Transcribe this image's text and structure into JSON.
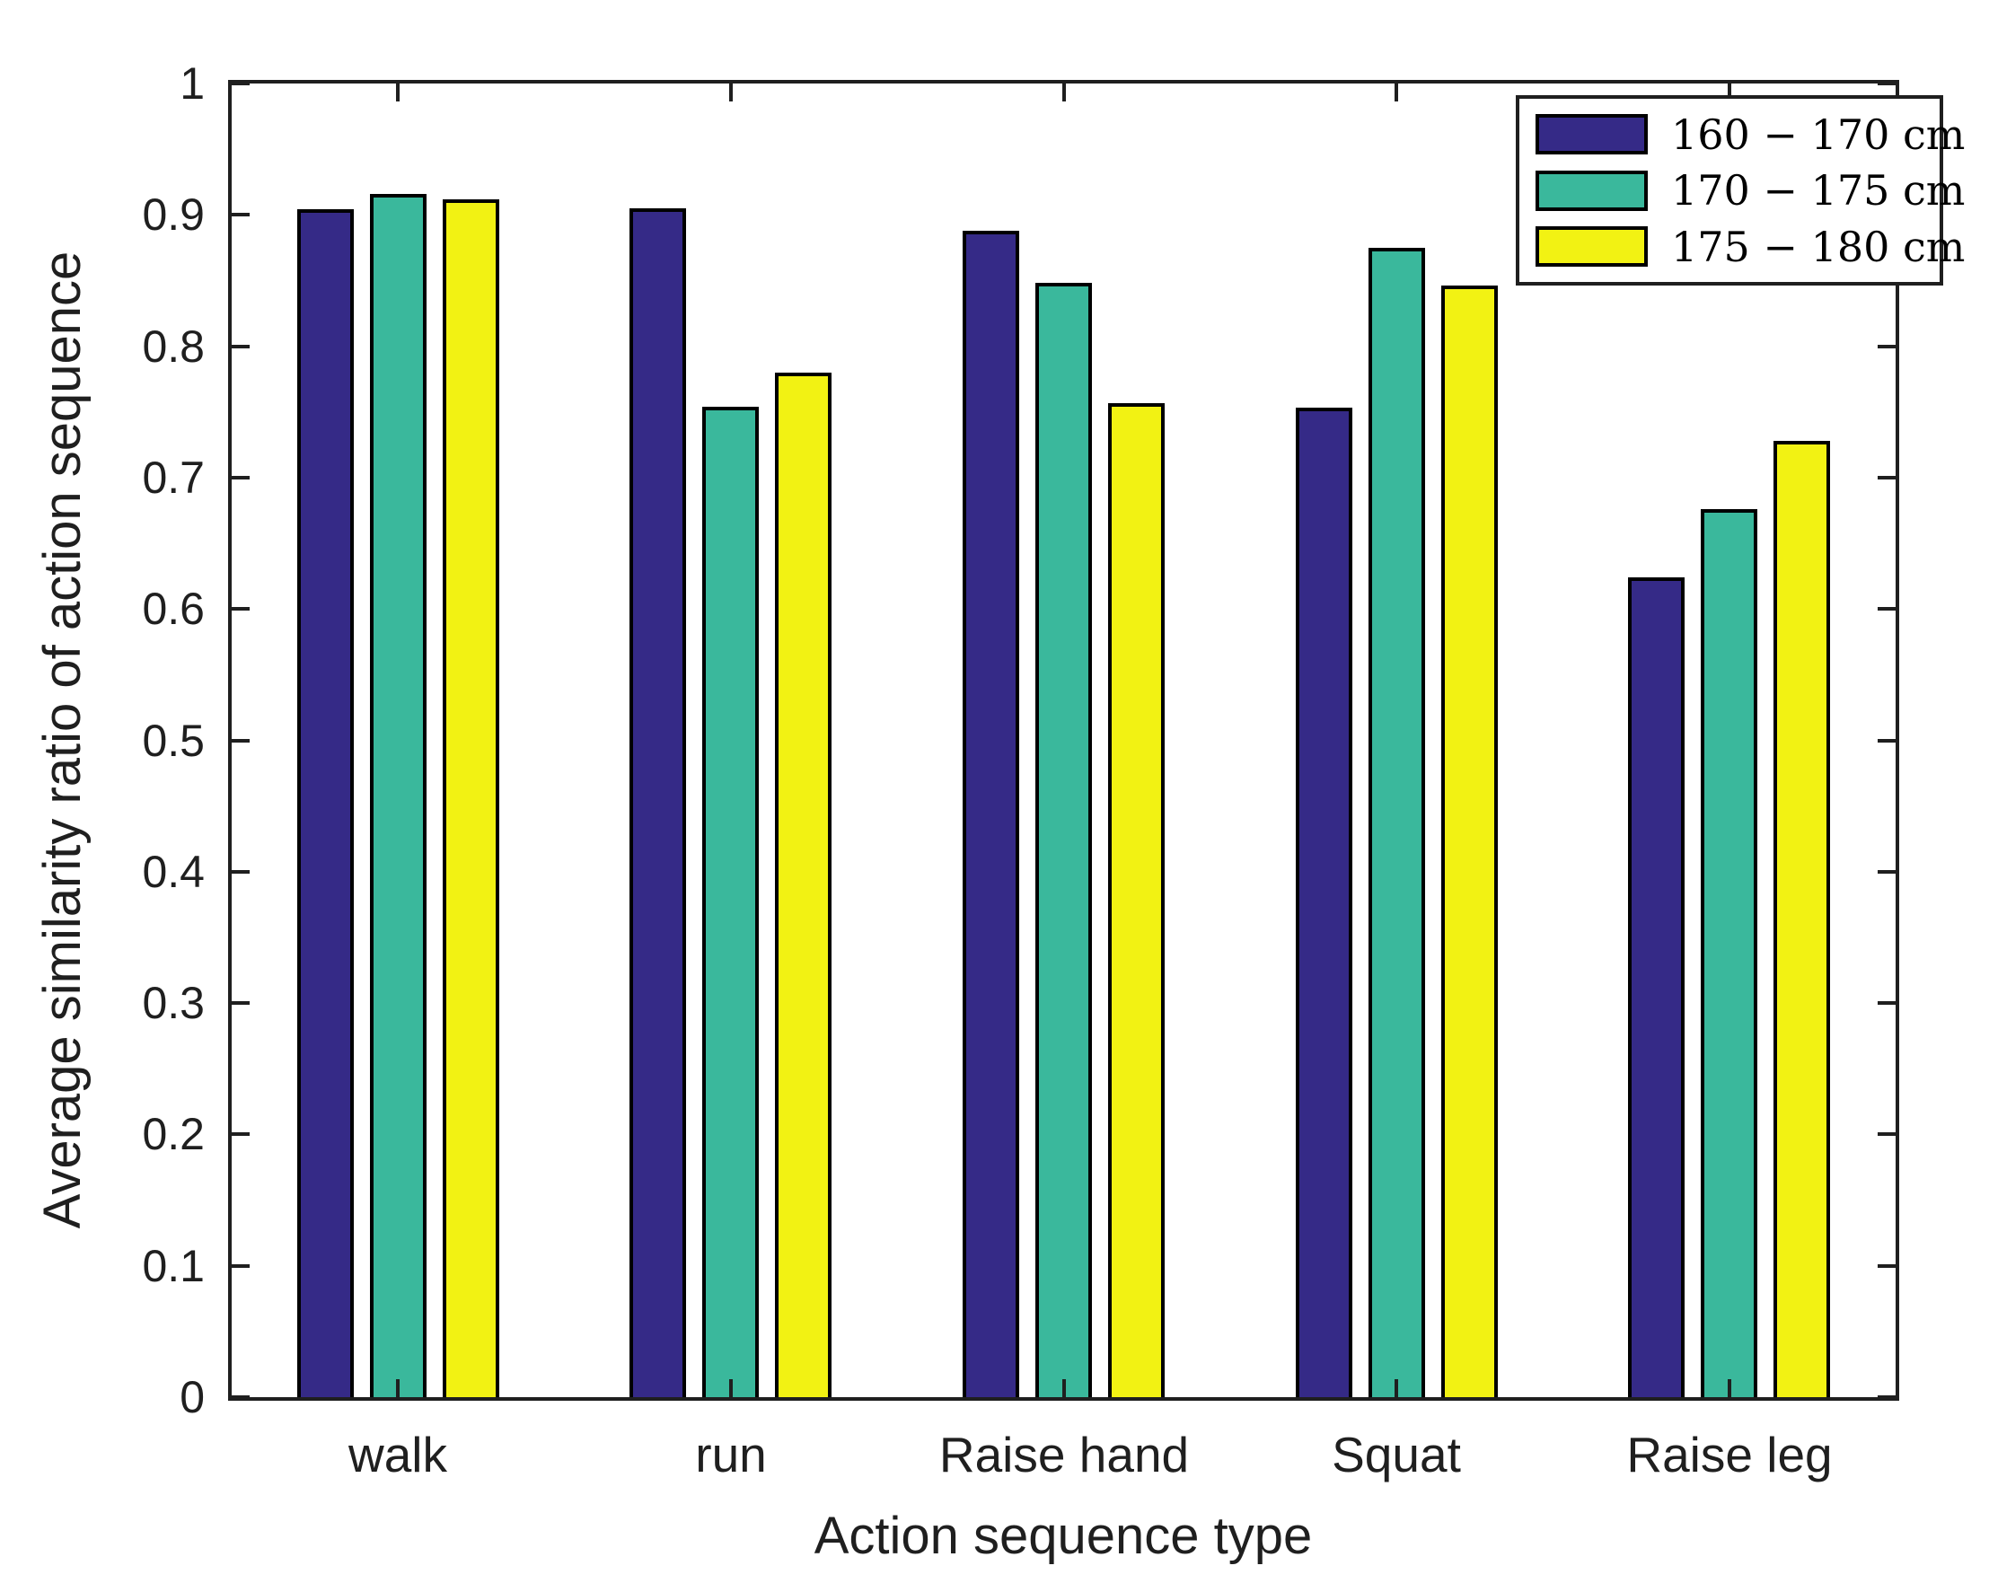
{
  "page": {
    "background": "#ffffff"
  },
  "chart_data": {
    "type": "bar",
    "title": "",
    "xlabel": "Action sequence type",
    "ylabel": "Average similarity ratio of action sequence",
    "categories": [
      "walk",
      "run",
      "Raise hand",
      "Squat",
      "Raise leg"
    ],
    "series": [
      {
        "name": "160 − 170 cm",
        "color": "#352a87",
        "values": [
          0.904,
          0.905,
          0.888,
          0.753,
          0.624
        ]
      },
      {
        "name": "170 − 175 cm",
        "color": "#3ab89c",
        "values": [
          0.916,
          0.754,
          0.848,
          0.875,
          0.676
        ]
      },
      {
        "name": "175 − 180 cm",
        "color": "#f2f213",
        "values": [
          0.912,
          0.78,
          0.757,
          0.846,
          0.728
        ]
      }
    ],
    "ylim": [
      0,
      1
    ],
    "ytick_labels": [
      "0",
      "0.1",
      "0.2",
      "0.3",
      "0.4",
      "0.5",
      "0.6",
      "0.7",
      "0.8",
      "0.9",
      "1"
    ],
    "legend_position": "top-right",
    "grid": false,
    "bar_edge_color": "#000000",
    "axis_color": "#1f1f1f",
    "background_color": "#ffffff"
  }
}
